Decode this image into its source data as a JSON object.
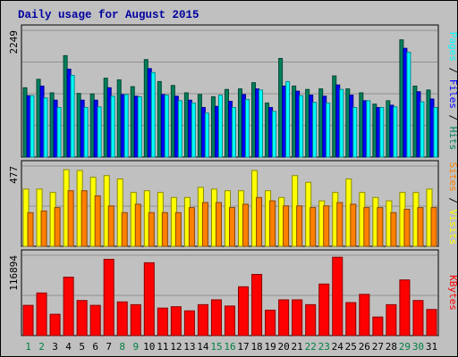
{
  "chart_data": {
    "type": "bar",
    "title": "Daily usage for August 2015",
    "days": [
      "1",
      "2",
      "3",
      "4",
      "5",
      "6",
      "7",
      "8",
      "9",
      "10",
      "11",
      "12",
      "13",
      "14",
      "15",
      "16",
      "17",
      "18",
      "19",
      "20",
      "21",
      "22",
      "23",
      "24",
      "25",
      "26",
      "27",
      "28",
      "29",
      "30",
      "31"
    ],
    "weekend_days": [
      "1",
      "2",
      "8",
      "9",
      "15",
      "16",
      "22",
      "23",
      "29",
      "30"
    ],
    "panels": [
      {
        "name": "hits-files-pages",
        "scale_max_label": "2249",
        "ymax": 2249,
        "right_labels": [
          "Pages",
          "Files",
          "Hits"
        ],
        "series": [
          {
            "name": "Hits",
            "color": "#00805c",
            "values": [
              1230,
              1380,
              1140,
              1800,
              1130,
              1120,
              1400,
              1370,
              1250,
              1730,
              1340,
              1270,
              1140,
              1110,
              1070,
              1200,
              1210,
              1320,
              960,
              1750,
              1260,
              1200,
              1210,
              1440,
              1210,
              1140,
              940,
              1000,
              2080,
              1260,
              1190
            ]
          },
          {
            "name": "Files",
            "color": "#0000ff",
            "values": [
              1090,
              1260,
              1010,
              1560,
              1010,
              1010,
              1230,
              1110,
              1080,
              1570,
              1110,
              1080,
              1010,
              880,
              900,
              990,
              1110,
              1210,
              880,
              1260,
              1170,
              1100,
              1080,
              1280,
              1100,
              1000,
              880,
              920,
              1930,
              1160,
              1030
            ]
          },
          {
            "name": "Pages",
            "color": "#00ffff",
            "values": [
              1090,
              1050,
              880,
              1450,
              880,
              890,
              1080,
              1110,
              1070,
              1500,
              1100,
              1000,
              960,
              780,
              1100,
              880,
              1020,
              1190,
              810,
              1340,
              1090,
              970,
              960,
              1200,
              880,
              1000,
              880,
              890,
              1860,
              980,
              880
            ]
          }
        ]
      },
      {
        "name": "visits-sites",
        "scale_max_label": "477",
        "ymax": 477,
        "right_labels": [
          "Sites",
          "Visits"
        ],
        "series": [
          {
            "name": "Visits",
            "color": "#ffff00",
            "values": [
              340,
              340,
              320,
              455,
              450,
              410,
              420,
              400,
              320,
              330,
              320,
              290,
              290,
              350,
              340,
              330,
              330,
              450,
              330,
              290,
              420,
              380,
              270,
              320,
              400,
              320,
              290,
              270,
              320,
              320,
              340
            ]
          },
          {
            "name": "Sites",
            "color": "#ff8000",
            "values": [
              200,
              210,
              230,
              330,
              330,
              300,
              240,
              200,
              250,
              200,
              200,
              200,
              230,
              260,
              260,
              230,
              250,
              290,
              270,
              240,
              240,
              230,
              240,
              260,
              250,
              230,
              230,
              200,
              220,
              230,
              230
            ]
          }
        ]
      },
      {
        "name": "kbytes",
        "scale_max_label": "116894",
        "ymax": 116894,
        "right_labels": [
          "KBytes"
        ],
        "series": [
          {
            "name": "KBytes",
            "color": "#ff0000",
            "values": [
              44000,
              62000,
              31000,
              85000,
              51000,
              44000,
              111000,
              49000,
              45000,
              106000,
              40000,
              42000,
              36000,
              45000,
              52000,
              43000,
              71000,
              89000,
              37000,
              52000,
              52000,
              45000,
              75000,
              114000,
              48000,
              60000,
              27000,
              45000,
              81000,
              51000,
              38000
            ]
          }
        ]
      }
    ]
  }
}
